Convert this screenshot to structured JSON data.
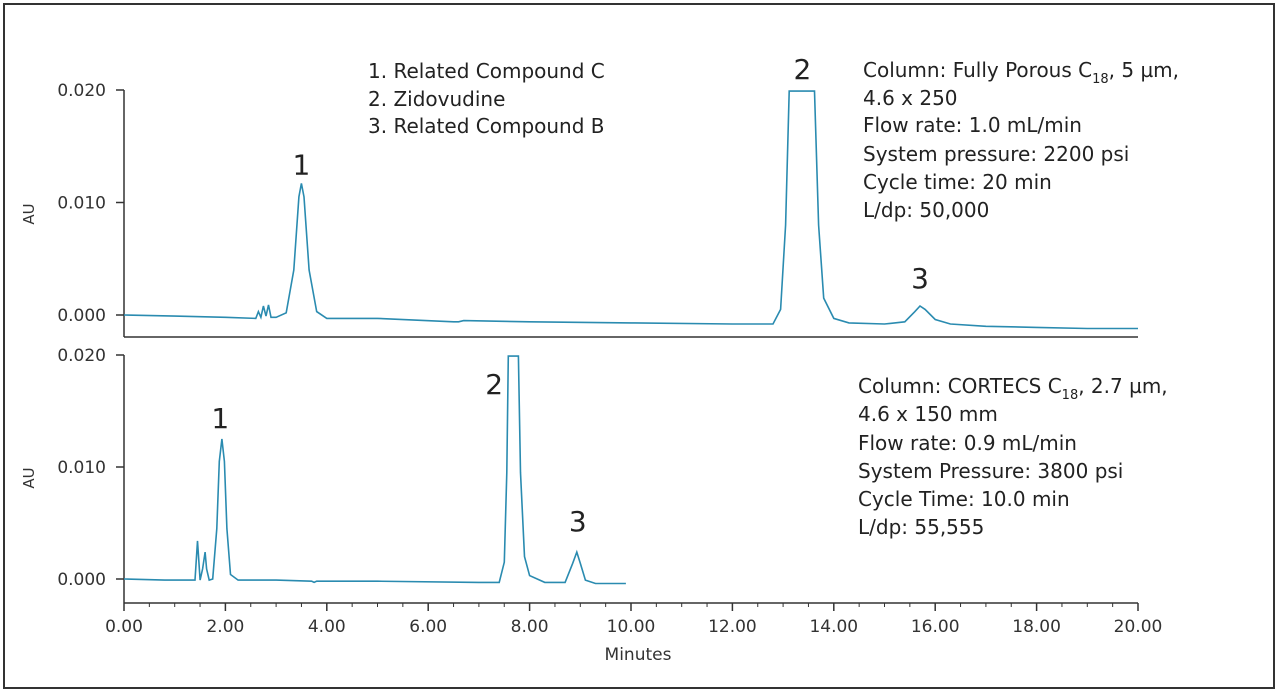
{
  "chart_data": [
    {
      "type": "line",
      "ylabel": "AU",
      "ylim": [
        0,
        0.02
      ],
      "yticks": [
        "0.000",
        "0.010",
        "0.020"
      ],
      "peak_labels": [
        {
          "text": "1",
          "x": 3.5,
          "y": 0.0125
        },
        {
          "text": "2",
          "x": 13.38,
          "y": 0.021
        },
        {
          "text": "3",
          "x": 15.7,
          "y": 0.0024
        }
      ],
      "legend": [
        "1.  Related Compound C",
        "2.  Zidovudine",
        "3.  Related Compound B"
      ],
      "info": {
        "column_prefix": "Column: Fully Porous C",
        "column_sub": "18",
        "column_suffix": ", 5 µm,",
        "line2": "4.6 x 250",
        "line3": "Flow rate: 1.0 mL/min",
        "line4": "System pressure: 2200 psi",
        "line5": "Cycle time: 20 min",
        "line6": "L/dp: 50,000"
      },
      "series": [
        {
          "x": [
            0.0,
            1.0,
            2.0,
            2.6,
            2.65,
            2.7,
            2.75,
            2.8,
            2.85,
            2.9,
            3.0,
            3.2,
            3.35,
            3.45,
            3.5,
            3.55,
            3.65,
            3.8,
            4.0,
            5.0,
            6.5,
            6.6,
            6.7,
            8.0,
            10.0,
            12.0,
            12.8,
            12.95,
            13.05,
            13.12,
            13.62,
            13.7,
            13.8,
            14.0,
            14.3,
            15.0,
            15.4,
            15.6,
            15.7,
            15.8,
            16.0,
            16.3,
            17.0,
            18.0,
            19.0,
            20.0
          ],
          "y": [
            0.0,
            -0.0001,
            -0.0002,
            -0.0003,
            0.0003,
            -0.0002,
            0.0008,
            -0.0001,
            0.0009,
            -0.0002,
            -0.0002,
            0.0002,
            0.004,
            0.0105,
            0.0117,
            0.0105,
            0.004,
            0.0003,
            -0.0003,
            -0.0003,
            -0.0006,
            -0.0006,
            -0.0005,
            -0.0006,
            -0.0007,
            -0.0008,
            -0.0008,
            0.0005,
            0.008,
            0.0199,
            0.0199,
            0.008,
            0.0015,
            -0.0003,
            -0.0007,
            -0.0008,
            -0.0006,
            0.0003,
            0.0008,
            0.0005,
            -0.0004,
            -0.0008,
            -0.001,
            -0.0011,
            -0.0012,
            -0.0012
          ]
        }
      ]
    },
    {
      "type": "line",
      "xlabel": "Minutes",
      "ylabel": "AU",
      "ylim": [
        0,
        0.02
      ],
      "xlim": [
        0,
        20
      ],
      "yticks": [
        "0.000",
        "0.010",
        "0.020"
      ],
      "xticks": [
        "0.00",
        "2.00",
        "4.00",
        "6.00",
        "8.00",
        "10.00",
        "12.00",
        "14.00",
        "16.00",
        "18.00",
        "20.00"
      ],
      "peak_labels": [
        {
          "text": "1",
          "x": 1.9,
          "y": 0.0135
        },
        {
          "text": "2",
          "x": 7.3,
          "y": 0.0165
        },
        {
          "text": "3",
          "x": 8.95,
          "y": 0.0043
        }
      ],
      "info": {
        "column_prefix": "Column: CORTECS C",
        "column_sub": "18",
        "column_suffix": ", 2.7 µm,",
        "line2": "4.6 x 150 mm",
        "line3": "Flow rate: 0.9 mL/min",
        "line4": "System Pressure: 3800 psi",
        "line5": "Cycle Time: 10.0 min",
        "line6": "L/dp: 55,555"
      },
      "series": [
        {
          "x": [
            0.0,
            0.8,
            1.4,
            1.45,
            1.5,
            1.55,
            1.6,
            1.63,
            1.68,
            1.75,
            1.83,
            1.88,
            1.93,
            1.98,
            2.03,
            2.1,
            2.25,
            3.0,
            3.7,
            3.75,
            3.8,
            5.0,
            7.0,
            7.4,
            7.5,
            7.55,
            7.58,
            7.78,
            7.82,
            7.9,
            8.0,
            8.3,
            8.7,
            8.85,
            8.93,
            9.0,
            9.1,
            9.3,
            9.9
          ],
          "y": [
            0.0,
            -0.0001,
            -0.0001,
            0.0034,
            -0.0001,
            0.0009,
            0.0024,
            0.0009,
            -0.0001,
            0.0,
            0.0045,
            0.0105,
            0.0125,
            0.0105,
            0.0045,
            0.0004,
            -0.0001,
            -0.0001,
            -0.0002,
            -0.0003,
            -0.0002,
            -0.0002,
            -0.0003,
            -0.0003,
            0.0015,
            0.0095,
            0.0199,
            0.0199,
            0.0095,
            0.002,
            0.0003,
            -0.0003,
            -0.0003,
            0.0014,
            0.0024,
            0.0014,
            -0.0001,
            -0.0004,
            -0.0004
          ]
        }
      ]
    }
  ]
}
